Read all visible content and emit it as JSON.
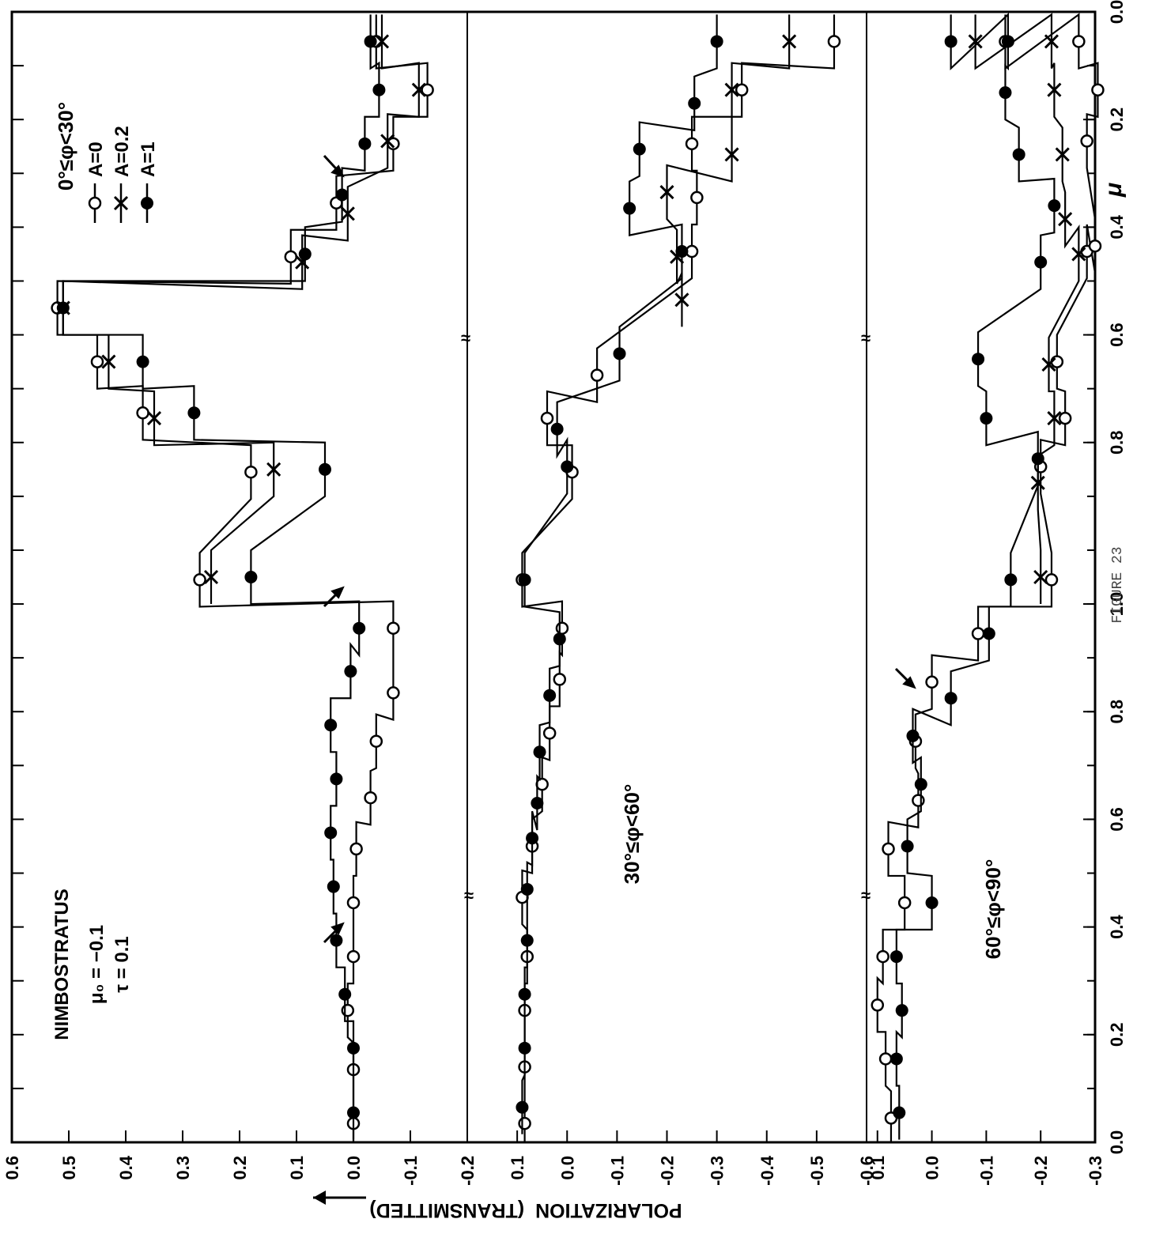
{
  "figure_caption": "FIGURE 23",
  "chart_data": {
    "type": "line",
    "orientation": "rotated 90 degrees counter-clockwise; mu axis runs along the top edge, polarization axis along the left edge",
    "title": "NIMBOSTRATUS",
    "params": [
      "μ₀ = −0.1",
      "τ = 0.1"
    ],
    "xlabel": "μ",
    "ylabel": "POLARIZATION  (TRANSMITTED)",
    "x_ticks": [
      "0.0",
      "0.2",
      "0.4",
      "0.6",
      "0.8",
      "1.0",
      "0.8",
      "0.6",
      "0.4",
      "0.2",
      "0.0"
    ],
    "legend": [
      {
        "label": "A=0",
        "marker": "open-circle"
      },
      {
        "label": "A=0.2",
        "marker": "cross"
      },
      {
        "label": "A=1",
        "marker": "filled-circle"
      }
    ],
    "panels": [
      {
        "label": "0°≤φ<30°",
        "ylim": [
          -0.2,
          0.6
        ],
        "y_ticks": [
          "0.6",
          "0.5",
          "0.4",
          "0.3",
          "0.2",
          "0.1",
          "0.0",
          "-0.1",
          "-0.2"
        ],
        "series": [
          {
            "name": "A=0",
            "points": [
              [
                0.035,
                0.0
              ],
              [
                0.135,
                0.0
              ],
              [
                0.245,
                0.01
              ],
              [
                0.345,
                0.0
              ],
              [
                0.445,
                0.0
              ],
              [
                0.545,
                -0.005
              ],
              [
                0.64,
                -0.03
              ],
              [
                0.745,
                -0.04
              ],
              [
                0.835,
                -0.07
              ],
              [
                0.955,
                -0.07
              ],
              [
                1.045,
                0.27
              ],
              [
                1.245,
                0.18
              ],
              [
                1.355,
                0.37
              ],
              [
                1.45,
                0.45
              ],
              [
                1.55,
                0.52
              ],
              [
                1.645,
                0.11
              ],
              [
                1.745,
                0.03
              ],
              [
                1.855,
                -0.07
              ],
              [
                1.955,
                -0.13
              ],
              [
                2.045,
                -0.04
              ]
            ]
          },
          {
            "name": "A=0.2",
            "points": [
              [
                1.05,
                0.25
              ],
              [
                1.25,
                0.14
              ],
              [
                1.345,
                0.35
              ],
              [
                1.45,
                0.43
              ],
              [
                1.55,
                0.51
              ],
              [
                1.635,
                0.09
              ],
              [
                1.725,
                0.01
              ],
              [
                1.86,
                -0.06
              ],
              [
                1.955,
                -0.115
              ],
              [
                2.045,
                -0.05
              ]
            ]
          },
          {
            "name": "A=1",
            "points": [
              [
                0.055,
                0.0
              ],
              [
                0.175,
                0.0
              ],
              [
                0.275,
                0.015
              ],
              [
                0.375,
                0.03
              ],
              [
                0.475,
                0.035
              ],
              [
                0.575,
                0.04
              ],
              [
                0.675,
                0.03
              ],
              [
                0.775,
                0.04
              ],
              [
                0.875,
                0.005
              ],
              [
                0.955,
                -0.01
              ],
              [
                1.05,
                0.18
              ],
              [
                1.25,
                0.05
              ],
              [
                1.355,
                0.28
              ],
              [
                1.45,
                0.37
              ],
              [
                1.55,
                0.51
              ],
              [
                1.65,
                0.085
              ],
              [
                1.76,
                0.02
              ],
              [
                1.855,
                -0.02
              ],
              [
                1.955,
                -0.045
              ],
              [
                2.045,
                -0.03
              ]
            ]
          }
        ]
      },
      {
        "label": "30°≤φ<60°",
        "ylim": [
          -0.6,
          0.2
        ],
        "y_ticks": [
          "0.2",
          "0.1",
          "0.0",
          "-0.1",
          "-0.2",
          "-0.3",
          "-0.4",
          "-0.5",
          "-0.6"
        ],
        "series": [
          {
            "name": "A=0",
            "points": [
              [
                0.035,
                0.085
              ],
              [
                0.14,
                0.085
              ],
              [
                0.245,
                0.085
              ],
              [
                0.345,
                0.08
              ],
              [
                0.455,
                0.09
              ],
              [
                0.55,
                0.07
              ],
              [
                0.665,
                0.05
              ],
              [
                0.76,
                0.035
              ],
              [
                0.86,
                0.015
              ],
              [
                0.955,
                0.01
              ],
              [
                1.045,
                0.09
              ],
              [
                1.245,
                -0.01
              ],
              [
                1.345,
                0.04
              ],
              [
                1.425,
                -0.06
              ],
              [
                1.655,
                -0.25
              ],
              [
                1.755,
                -0.26
              ],
              [
                1.855,
                -0.25
              ],
              [
                1.955,
                -0.35
              ],
              [
                2.045,
                -0.535
              ]
            ]
          },
          {
            "name": "A=0.2",
            "points": [
              [
                1.565,
                -0.23
              ],
              [
                1.645,
                -0.22
              ],
              [
                1.765,
                -0.2
              ],
              [
                1.835,
                -0.33
              ],
              [
                1.955,
                -0.33
              ],
              [
                2.045,
                -0.445
              ]
            ]
          },
          {
            "name": "A=1",
            "points": [
              [
                0.065,
                0.09
              ],
              [
                0.175,
                0.085
              ],
              [
                0.275,
                0.085
              ],
              [
                0.375,
                0.08
              ],
              [
                0.47,
                0.08
              ],
              [
                0.565,
                0.07
              ],
              [
                0.63,
                0.06
              ],
              [
                0.725,
                0.055
              ],
              [
                0.83,
                0.035
              ],
              [
                0.935,
                0.015
              ],
              [
                1.045,
                0.085
              ],
              [
                1.255,
                0.0
              ],
              [
                1.325,
                0.02
              ],
              [
                1.465,
                -0.105
              ],
              [
                1.655,
                -0.23
              ],
              [
                1.735,
                -0.125
              ],
              [
                1.845,
                -0.145
              ],
              [
                1.93,
                -0.255
              ],
              [
                2.045,
                -0.3
              ]
            ]
          }
        ]
      },
      {
        "label": "60°≤φ<90°",
        "ylim": [
          -0.3,
          0.12
        ],
        "y_ticks": [
          "0.1",
          "0.0",
          "-0.1",
          "-0.2",
          "-0.3"
        ],
        "series": [
          {
            "name": "A=0",
            "points": [
              [
                0.045,
                0.075
              ],
              [
                0.155,
                0.085
              ],
              [
                0.255,
                0.1
              ],
              [
                0.345,
                0.09
              ],
              [
                0.445,
                0.05
              ],
              [
                0.545,
                0.08
              ],
              [
                0.635,
                0.025
              ],
              [
                0.745,
                0.03
              ],
              [
                0.855,
                0.0
              ],
              [
                0.945,
                -0.085
              ],
              [
                1.045,
                -0.22
              ],
              [
                1.255,
                -0.2
              ],
              [
                1.345,
                -0.245
              ],
              [
                1.45,
                -0.23
              ],
              [
                1.655,
                -0.285
              ],
              [
                1.665,
                -0.3
              ],
              [
                1.86,
                -0.285
              ],
              [
                1.955,
                -0.305
              ],
              [
                2.045,
                -0.27
              ],
              [
                2.045,
                -0.135
              ]
            ]
          },
          {
            "name": "A=0.2",
            "points": [
              [
                1.05,
                -0.2
              ],
              [
                1.225,
                -0.195
              ],
              [
                1.345,
                -0.225
              ],
              [
                1.445,
                -0.215
              ],
              [
                1.65,
                -0.27
              ],
              [
                1.715,
                -0.245
              ],
              [
                1.835,
                -0.24
              ],
              [
                1.955,
                -0.225
              ],
              [
                2.045,
                -0.22
              ],
              [
                2.045,
                -0.08
              ]
            ]
          },
          {
            "name": "A=1",
            "points": [
              [
                0.055,
                0.06
              ],
              [
                0.155,
                0.065
              ],
              [
                0.245,
                0.055
              ],
              [
                0.345,
                0.065
              ],
              [
                0.445,
                0.0
              ],
              [
                0.55,
                0.045
              ],
              [
                0.665,
                0.02
              ],
              [
                0.755,
                0.035
              ],
              [
                0.825,
                -0.035
              ],
              [
                0.945,
                -0.105
              ],
              [
                1.045,
                -0.145
              ],
              [
                1.27,
                -0.195
              ],
              [
                1.345,
                -0.1
              ],
              [
                1.455,
                -0.085
              ],
              [
                1.635,
                -0.2
              ],
              [
                1.74,
                -0.225
              ],
              [
                1.835,
                -0.16
              ],
              [
                1.95,
                -0.135
              ],
              [
                2.045,
                -0.14
              ],
              [
                2.045,
                -0.035
              ]
            ]
          }
        ]
      }
    ]
  }
}
